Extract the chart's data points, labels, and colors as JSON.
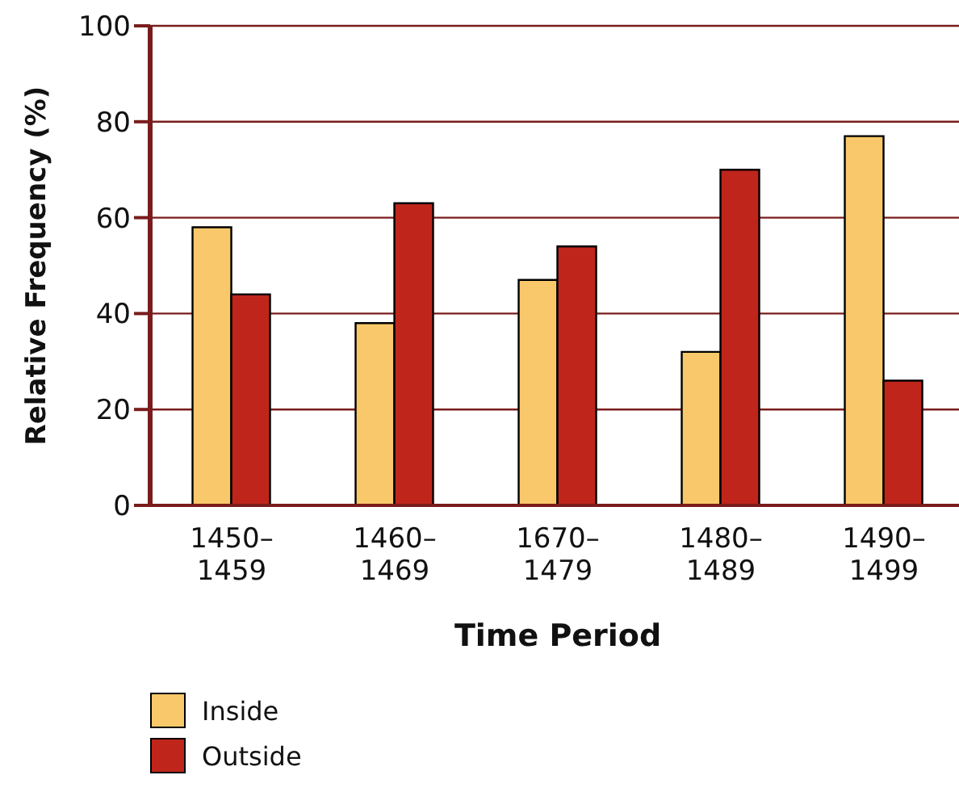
{
  "chart_data": {
    "type": "bar",
    "xlabel": "Time Period",
    "ylabel": "Relative Frequency (%)",
    "categories": [
      "1450–1459",
      "1460–1469",
      "1670–1479",
      "1480–1489",
      "1490–1499"
    ],
    "series": [
      {
        "name": "Inside",
        "color": "#f8c86a",
        "values": [
          58,
          38,
          47,
          32,
          77
        ]
      },
      {
        "name": "Outside",
        "color": "#c0251c",
        "values": [
          44,
          63,
          54,
          70,
          26
        ]
      }
    ],
    "ylim": [
      0,
      100
    ],
    "yticks": [
      0,
      20,
      40,
      60,
      80,
      100
    ],
    "grid": "y",
    "legend": "bottom left"
  }
}
